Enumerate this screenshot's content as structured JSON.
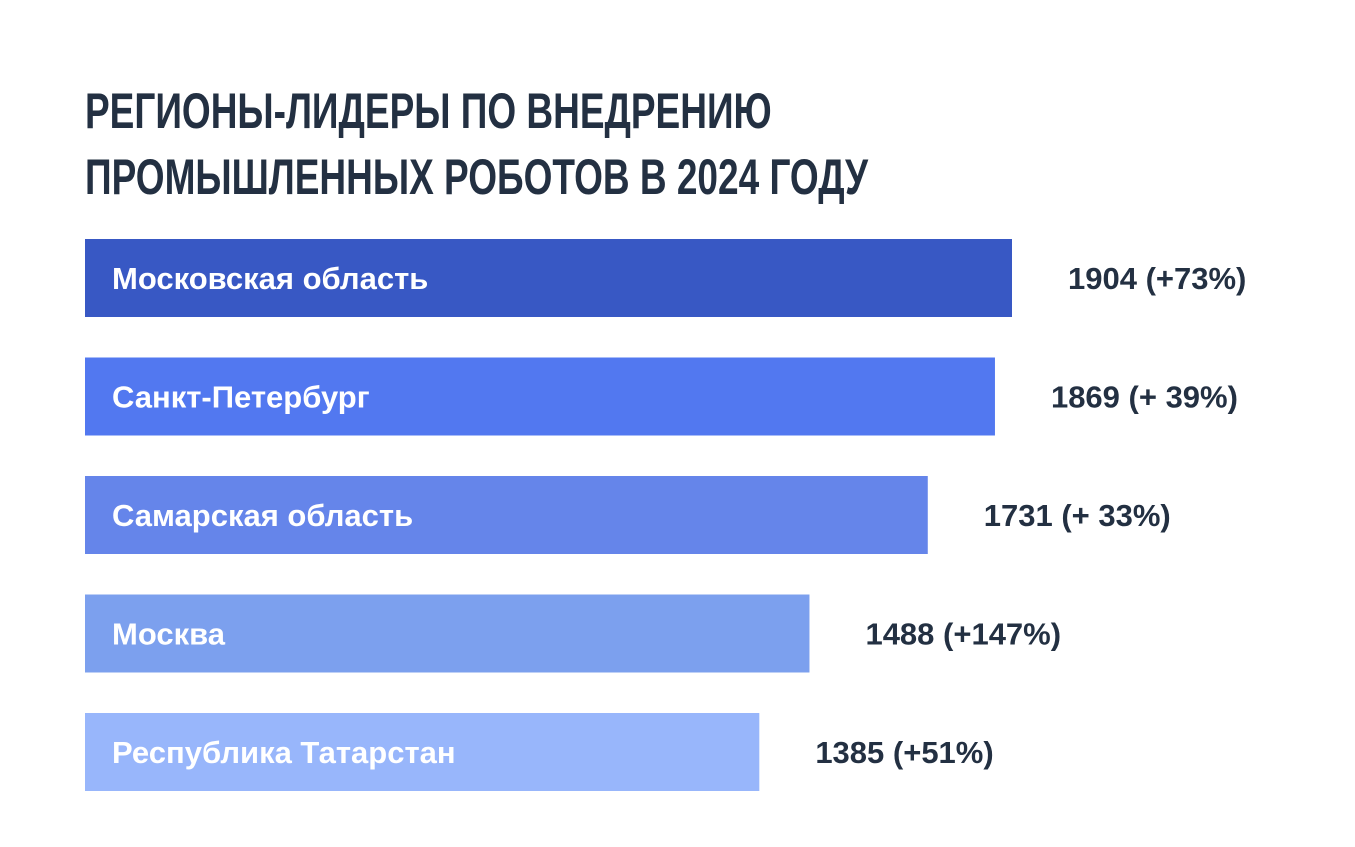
{
  "chart_data": {
    "type": "bar",
    "orientation": "horizontal",
    "title": "Регионы-лидеры по внедрению промышленных роботов в 2024 году",
    "title_lines": [
      "Регионы-лидеры по внедрению",
      "промышленных роботов в 2024 году"
    ],
    "categories": [
      "Московская область",
      "Санкт-Петербург",
      "Самарская область",
      "Москва",
      "Республика Татарстан"
    ],
    "values": [
      1904,
      1869,
      1731,
      1488,
      1385
    ],
    "value_labels": [
      "1904 (+73%)",
      "1869 (+ 39%)",
      "1731 (+ 33%)",
      "1488 (+147%)",
      "1385 (+51%)"
    ],
    "colors": [
      "#3858c4",
      "#5278f0",
      "#6585ea",
      "#7ca0ee",
      "#98b6fb"
    ],
    "xlabel": "",
    "ylabel": "",
    "grid": false,
    "legend": "none"
  }
}
